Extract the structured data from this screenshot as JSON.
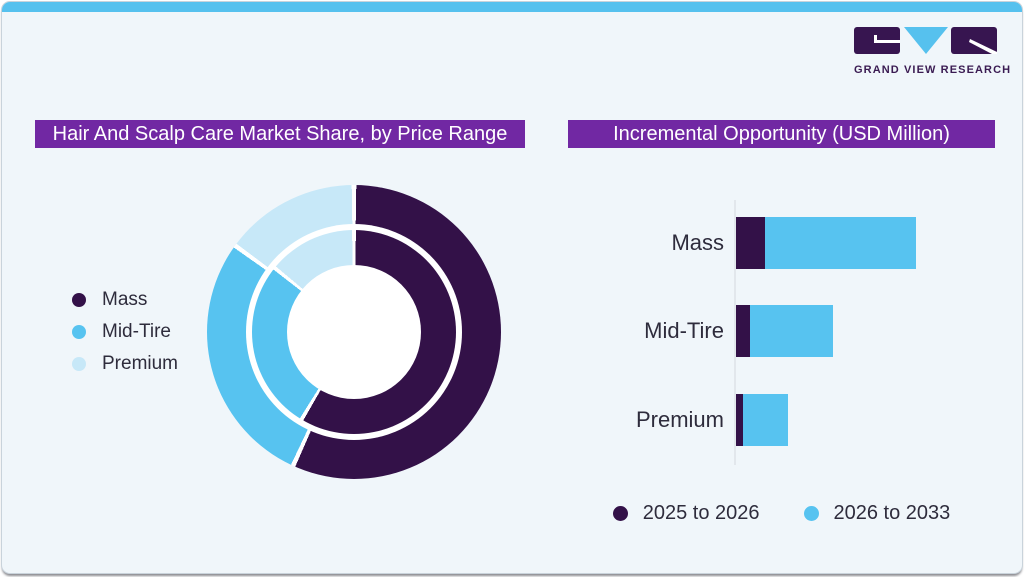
{
  "brand": {
    "logo_text": "GRAND VIEW RESEARCH",
    "colors": {
      "logo_purple": "#371550",
      "logo_blue": "#56c1ee"
    }
  },
  "theme": {
    "background": "#f0f6fa",
    "top_accent": "#56c1ee",
    "title_bar": "#7128a3",
    "dark_purple": "#331148",
    "mid_blue": "#57c3f0",
    "light_blue": "#c7e8f8",
    "text": "#2e2c3c"
  },
  "left_panel": {
    "title": "Hair And Scalp Care Market Share, by Price Range",
    "legend": [
      {
        "label": "Mass",
        "color": "#331148"
      },
      {
        "label": "Mid-Tire",
        "color": "#57c3f0"
      },
      {
        "label": "Premium",
        "color": "#c7e8f8"
      }
    ]
  },
  "right_panel": {
    "title": "Incremental Opportunity (USD Million)",
    "categories": [
      "Mass",
      "Mid-Tire",
      "Premium"
    ],
    "legend": [
      {
        "label": "2025 to 2026",
        "color": "#331148"
      },
      {
        "label": "2026 to 2033",
        "color": "#57c3f0"
      }
    ]
  },
  "chart_data": [
    {
      "type": "pie",
      "subtype": "double-ring-donut",
      "title": "Hair And Scalp Care Market Share, by Price Range",
      "categories": [
        "Mass",
        "Mid-Tire",
        "Premium"
      ],
      "colors": [
        "#331148",
        "#57c3f0",
        "#c7e8f8"
      ],
      "rings": [
        {
          "name": "outer",
          "values_pct": [
            56.8,
            28.2,
            15.0
          ]
        },
        {
          "name": "inner",
          "values_pct": [
            58.6,
            27.2,
            14.2
          ]
        }
      ],
      "start_angle_deg": 0,
      "direction": "clockwise",
      "data_labels_shown": false,
      "note": "shares estimated from arc angles; no numeric labels shown in image"
    },
    {
      "type": "bar",
      "orientation": "horizontal",
      "stacked": true,
      "title": "Incremental Opportunity (USD Million)",
      "categories": [
        "Mass",
        "Mid-Tire",
        "Premium"
      ],
      "series": [
        {
          "name": "2025 to 2026",
          "color": "#331148",
          "values_relative": [
            16,
            8,
            4
          ]
        },
        {
          "name": "2026 to 2033",
          "color": "#57c3f0",
          "values_relative": [
            84,
            46,
            25
          ]
        }
      ],
      "axis_labels_shown": false,
      "gridlines": false,
      "legend_position": "bottom",
      "note": "axis unlabeled; values estimated from relative bar lengths"
    }
  ]
}
